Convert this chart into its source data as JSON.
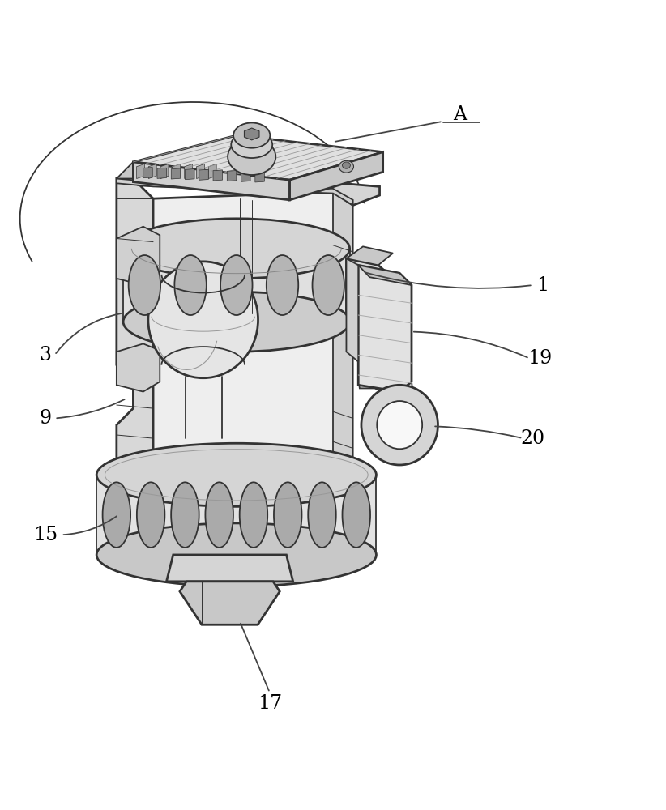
{
  "bg_color": "#ffffff",
  "line_color": "#333333",
  "line_width": 1.3,
  "fig_width": 8.22,
  "fig_height": 10.0,
  "label_fontsize": 17,
  "label_color": "#000000",
  "annotation_color": "#555555",
  "gray_light": "#eeeeee",
  "gray_mid": "#d8d8d8",
  "gray_dark": "#b8b8b8",
  "gray_face": "#e8e8e8"
}
